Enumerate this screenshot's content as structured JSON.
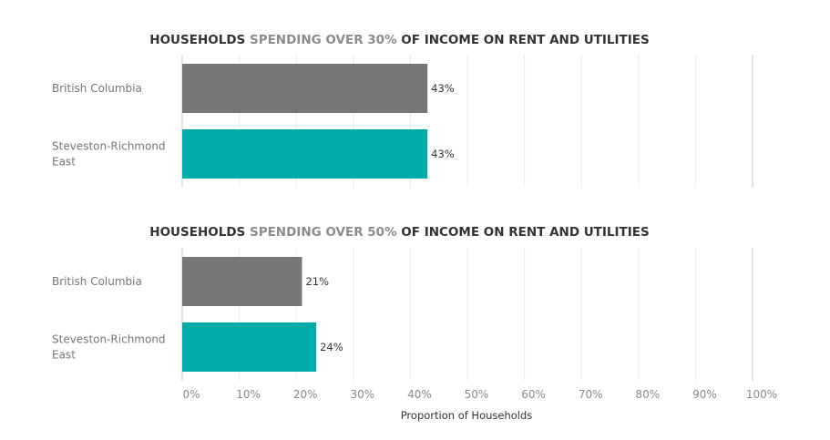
{
  "colors": {
    "region_bar": "#777777",
    "local_bar": "#00ADA9",
    "title_dark": "#333333",
    "title_highlight": "#8C8C8C",
    "grid": "#EBEBEB",
    "axis": "#C8C8C8"
  },
  "chart_data": [
    {
      "type": "bar",
      "orientation": "horizontal",
      "title_parts": [
        {
          "text": "HOUSEHOLDS ",
          "highlight": false
        },
        {
          "text": "SPENDING OVER 30%",
          "highlight": true
        },
        {
          "text": " OF INCOME ON RENT AND UTILITIES",
          "highlight": false
        }
      ],
      "categories": [
        "British Columbia",
        "Steveston-Richmond East"
      ],
      "values": [
        0.43,
        0.43
      ],
      "value_labels": [
        "43%",
        "43%"
      ],
      "xlim": [
        0,
        1.0
      ]
    },
    {
      "type": "bar",
      "orientation": "horizontal",
      "title_parts": [
        {
          "text": "HOUSEHOLDS ",
          "highlight": false
        },
        {
          "text": "SPENDING OVER 50%",
          "highlight": true
        },
        {
          "text": " OF INCOME ON RENT AND UTILITIES",
          "highlight": false
        }
      ],
      "categories": [
        "British Columbia",
        "Steveston-Richmond East"
      ],
      "values": [
        0.21,
        0.235
      ],
      "value_labels": [
        "21%",
        "24%"
      ],
      "xlim": [
        0,
        1.0
      ]
    }
  ],
  "x_axis": {
    "ticks": [
      0,
      0.1,
      0.2,
      0.3,
      0.4,
      0.5,
      0.6,
      0.7,
      0.8,
      0.9,
      1.0
    ],
    "tick_labels": [
      "0%",
      "10%",
      "20%",
      "30%",
      "40%",
      "50%",
      "60%",
      "70%",
      "80%",
      "90%",
      "100%"
    ],
    "label": "Proportion of Households",
    "grid": true
  }
}
